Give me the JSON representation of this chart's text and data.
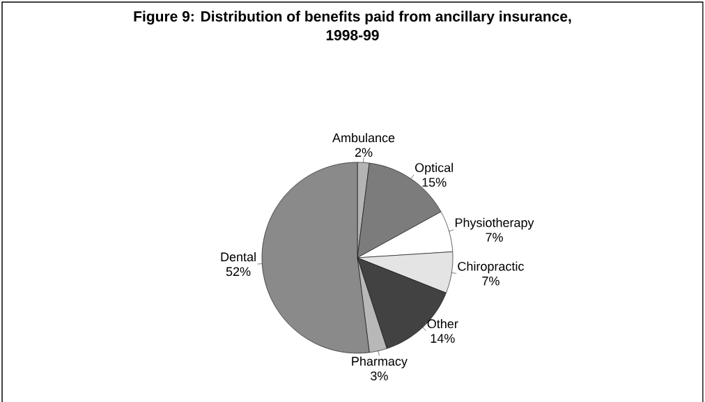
{
  "chart_data": {
    "type": "pie",
    "title": "Figure 9:  Distribution of benefits paid from ancillary insurance, 1998-99",
    "categories": [
      "Ambulance",
      "Optical",
      "Physiotherapy",
      "Chiropractic",
      "Other",
      "Pharmacy",
      "Dental"
    ],
    "values": [
      2,
      15,
      7,
      7,
      14,
      3,
      52
    ],
    "value_labels": [
      "2%",
      "15%",
      "7%",
      "7%",
      "14%",
      "3%",
      "52%"
    ],
    "colors": [
      "#b4b4b4",
      "#7c7c7c",
      "#ffffff",
      "#e4e4e4",
      "#424242",
      "#b8b8b8",
      "#8a8a8a"
    ]
  }
}
